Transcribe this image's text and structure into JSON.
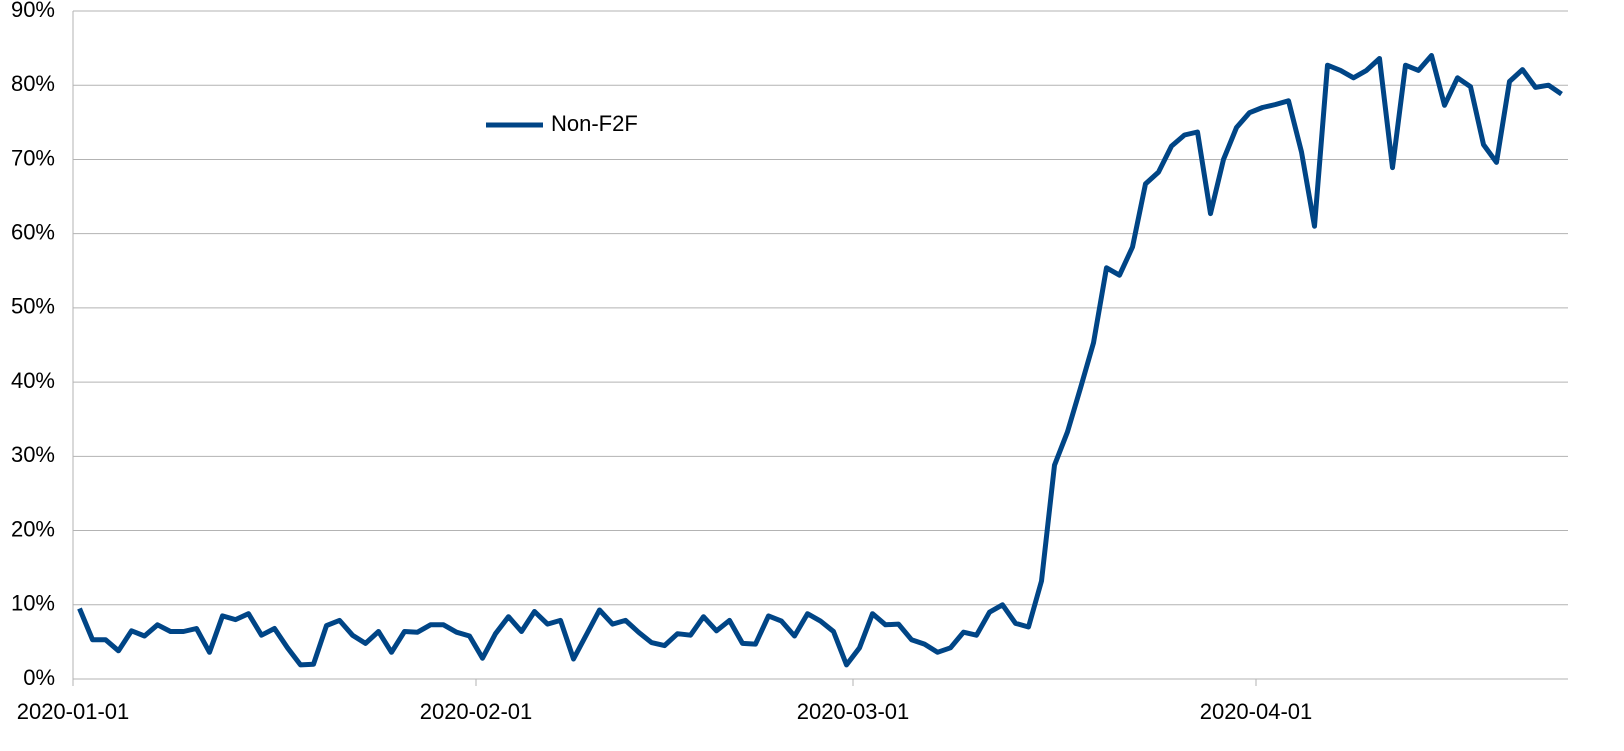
{
  "chart_data": {
    "type": "line",
    "x": [
      "2020-01-01",
      "2020-01-02",
      "2020-01-03",
      "2020-01-04",
      "2020-01-05",
      "2020-01-06",
      "2020-01-07",
      "2020-01-08",
      "2020-01-09",
      "2020-01-10",
      "2020-01-11",
      "2020-01-12",
      "2020-01-13",
      "2020-01-14",
      "2020-01-15",
      "2020-01-16",
      "2020-01-17",
      "2020-01-18",
      "2020-01-19",
      "2020-01-20",
      "2020-01-21",
      "2020-01-22",
      "2020-01-23",
      "2020-01-24",
      "2020-01-25",
      "2020-01-26",
      "2020-01-27",
      "2020-01-28",
      "2020-01-29",
      "2020-01-30",
      "2020-01-31",
      "2020-02-01",
      "2020-02-02",
      "2020-02-03",
      "2020-02-04",
      "2020-02-05",
      "2020-02-06",
      "2020-02-07",
      "2020-02-08",
      "2020-02-09",
      "2020-02-10",
      "2020-02-11",
      "2020-02-12",
      "2020-02-13",
      "2020-02-14",
      "2020-02-15",
      "2020-02-16",
      "2020-02-17",
      "2020-02-18",
      "2020-02-19",
      "2020-02-20",
      "2020-02-21",
      "2020-02-22",
      "2020-02-23",
      "2020-02-24",
      "2020-02-25",
      "2020-02-26",
      "2020-02-27",
      "2020-02-28",
      "2020-02-29",
      "2020-03-01",
      "2020-03-02",
      "2020-03-03",
      "2020-03-04",
      "2020-03-05",
      "2020-03-06",
      "2020-03-07",
      "2020-03-08",
      "2020-03-09",
      "2020-03-10",
      "2020-03-11",
      "2020-03-12",
      "2020-03-13",
      "2020-03-14",
      "2020-03-15",
      "2020-03-16",
      "2020-03-17",
      "2020-03-18",
      "2020-03-19",
      "2020-03-20",
      "2020-03-21",
      "2020-03-22",
      "2020-03-23",
      "2020-03-24",
      "2020-03-25",
      "2020-03-26",
      "2020-03-27",
      "2020-03-28",
      "2020-03-29",
      "2020-03-30",
      "2020-03-31",
      "2020-04-01",
      "2020-04-02",
      "2020-04-03",
      "2020-04-04",
      "2020-04-05",
      "2020-04-06",
      "2020-04-07",
      "2020-04-08",
      "2020-04-09",
      "2020-04-10",
      "2020-04-11",
      "2020-04-12",
      "2020-04-13",
      "2020-04-14",
      "2020-04-15",
      "2020-04-16",
      "2020-04-17",
      "2020-04-18",
      "2020-04-19",
      "2020-04-20",
      "2020-04-21",
      "2020-04-22",
      "2020-04-23",
      "2020-04-24"
    ],
    "series": [
      {
        "name": "Non-F2F",
        "color": "#004586",
        "values": [
          9.5,
          5.3,
          5.3,
          3.8,
          6.5,
          5.8,
          7.3,
          6.4,
          6.4,
          6.8,
          3.6,
          8.5,
          8.0,
          8.8,
          5.9,
          6.8,
          4.2,
          1.9,
          2.0,
          7.2,
          7.9,
          5.9,
          4.8,
          6.4,
          3.6,
          6.4,
          6.3,
          7.3,
          7.3,
          6.3,
          5.8,
          2.8,
          6.1,
          8.4,
          6.4,
          9.1,
          7.4,
          7.9,
          2.7,
          6.0,
          9.3,
          7.4,
          7.9,
          6.3,
          4.9,
          4.5,
          6.1,
          5.9,
          8.4,
          6.5,
          7.9,
          4.8,
          4.7,
          8.5,
          7.8,
          5.8,
          8.8,
          7.8,
          6.4,
          1.9,
          4.2,
          8.8,
          7.3,
          7.4,
          5.3,
          4.7,
          3.6,
          4.2,
          6.3,
          5.9,
          9.0,
          10.0,
          7.5,
          7.0,
          13.2,
          28.8,
          33.3,
          39.2,
          45.3,
          55.4,
          54.4,
          58.2,
          66.7,
          68.3,
          71.8,
          73.3,
          73.7,
          62.7,
          70.0,
          74.3,
          76.3,
          77.0,
          77.4,
          77.9,
          71.0,
          61.0,
          82.7,
          82.0,
          81.0,
          82.0,
          83.6,
          68.9,
          82.7,
          82.0,
          84.0,
          77.3,
          81.0,
          79.8,
          72.0,
          69.6,
          80.5,
          82.1,
          79.7,
          80.0,
          78.8
        ]
      }
    ],
    "xlim": [
      "2020-01-01",
      "2020-04-25"
    ],
    "xticks": [
      "2020-01-01",
      "2020-02-01",
      "2020-03-01",
      "2020-04-01"
    ],
    "ylim": [
      0,
      90
    ],
    "yticks": [
      {
        "value": 0,
        "label": "0%"
      },
      {
        "value": 10,
        "label": "10%"
      },
      {
        "value": 20,
        "label": "20%"
      },
      {
        "value": 30,
        "label": "30%"
      },
      {
        "value": 40,
        "label": "40%"
      },
      {
        "value": 50,
        "label": "50%"
      },
      {
        "value": 60,
        "label": "60%"
      },
      {
        "value": 70,
        "label": "70%"
      },
      {
        "value": 80,
        "label": "80%"
      },
      {
        "value": 90,
        "label": "90%"
      }
    ],
    "grid": true
  }
}
